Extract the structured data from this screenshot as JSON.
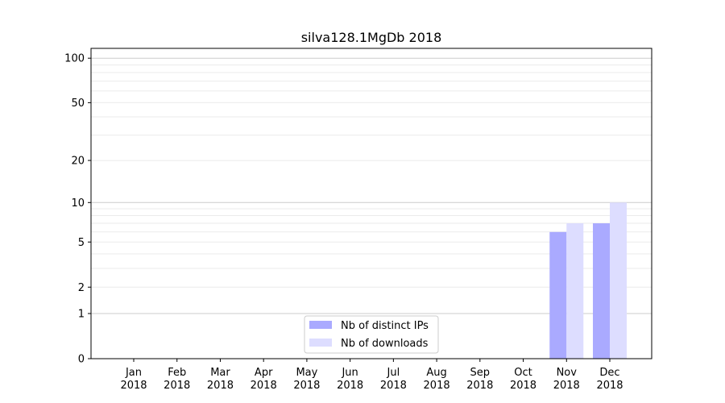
{
  "chart_data": {
    "type": "bar",
    "title": "silva128.1MgDb 2018",
    "xlabel": "",
    "ylabel": "",
    "yscale": "log(1+y)",
    "ylim": [
      0,
      110
    ],
    "categories": [
      "Jan\n2018",
      "Feb\n2018",
      "Mar\n2018",
      "Apr\n2018",
      "May\n2018",
      "Jun\n2018",
      "Jul\n2018",
      "Aug\n2018",
      "Sep\n2018",
      "Oct\n2018",
      "Nov\n2018",
      "Dec\n2018"
    ],
    "y_ticks": [
      0,
      1,
      2,
      5,
      10,
      20,
      50,
      100
    ],
    "series": [
      {
        "name": "Nb of distinct IPs",
        "color": "#aaaaff",
        "values": [
          0,
          0,
          0,
          0,
          0,
          0,
          0,
          0,
          0,
          0,
          6,
          7
        ]
      },
      {
        "name": "Nb of downloads",
        "color": "#ddddff",
        "values": [
          0,
          0,
          0,
          0,
          0,
          0,
          0,
          0,
          0,
          0,
          7,
          10
        ]
      }
    ],
    "grid": true,
    "legend": "bottom-center"
  }
}
